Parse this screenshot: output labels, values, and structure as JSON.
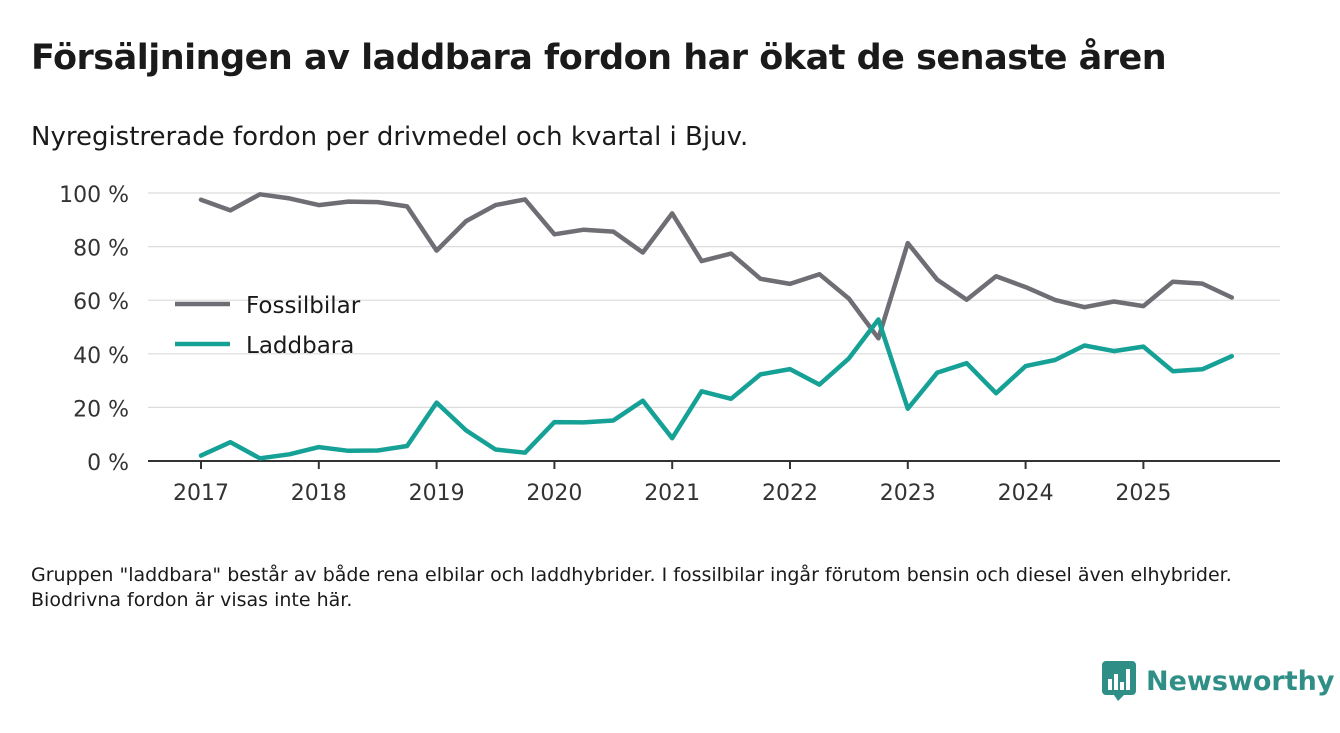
{
  "title": "Försäljningen av laddbara fordon har ökat de senaste åren",
  "subtitle": "Nyregistrerade fordon per drivmedel och kvartal i Bjuv.",
  "note": "Gruppen \"laddbara\" består av både rena elbilar och laddhybrider. I fossilbilar ingår förutom bensin och diesel även elhybrider. Biodrivna fordon är visas inte här.",
  "brand": {
    "name": "Newsworthy",
    "logo_icon": "newsworthy-logo-icon",
    "color": "#2f8f87"
  },
  "chart_data": {
    "type": "line",
    "title": "Nyregistrerade fordon per drivmedel och kvartal i Bjuv.",
    "xlabel": "",
    "ylabel": "",
    "x": [
      "2017 Q1",
      "2017 Q2",
      "2017 Q3",
      "2017 Q4",
      "2018 Q1",
      "2018 Q2",
      "2018 Q3",
      "2018 Q4",
      "2019 Q1",
      "2019 Q2",
      "2019 Q3",
      "2019 Q4",
      "2020 Q1",
      "2020 Q2",
      "2020 Q3",
      "2020 Q4",
      "2021 Q1",
      "2021 Q2",
      "2021 Q3",
      "2021 Q4",
      "2022 Q1",
      "2022 Q2",
      "2022 Q3",
      "2022 Q4",
      "2023 Q1",
      "2023 Q2",
      "2023 Q3",
      "2023 Q4",
      "2024 Q1",
      "2024 Q2",
      "2024 Q3",
      "2024 Q4",
      "2025 Q1",
      "2025 Q2",
      "2025 Q3",
      "2025 Q4"
    ],
    "x_tick_labels": [
      "2017",
      "2018",
      "2019",
      "2020",
      "2021",
      "2022",
      "2023",
      "2024",
      "2025"
    ],
    "y_ticks": [
      0,
      20,
      40,
      60,
      80,
      100
    ],
    "y_tick_labels": [
      "0 %",
      "20 %",
      "40 %",
      "60 %",
      "80 %",
      "100 %"
    ],
    "ylim": [
      0,
      100
    ],
    "grid": true,
    "legend_position": "left-middle",
    "series": [
      {
        "name": "Fossilbilar",
        "color": "#6e6e74",
        "values": [
          97.5,
          93.5,
          99.5,
          98.0,
          95.5,
          96.8,
          96.6,
          95.0,
          78.5,
          89.5,
          95.5,
          97.6,
          84.6,
          86.3,
          85.6,
          77.8,
          92.4,
          74.6,
          77.4,
          68.0,
          66.1,
          69.7,
          60.6,
          45.8,
          81.3,
          67.6,
          60.2,
          68.9,
          64.9,
          60.1,
          57.4,
          59.5,
          57.8,
          66.9,
          66.2,
          61.0
        ]
      },
      {
        "name": "Laddbara",
        "color": "#16a196",
        "values": [
          2.0,
          7.0,
          1.0,
          2.5,
          5.2,
          3.8,
          3.9,
          5.6,
          21.8,
          11.4,
          4.3,
          3.1,
          14.5,
          14.4,
          15.1,
          22.5,
          8.5,
          26.0,
          23.2,
          32.3,
          34.3,
          28.5,
          38.3,
          52.8,
          19.5,
          33.0,
          36.5,
          25.3,
          35.4,
          37.7,
          43.1,
          41.0,
          42.7,
          33.5,
          34.2,
          39.1
        ]
      }
    ]
  }
}
